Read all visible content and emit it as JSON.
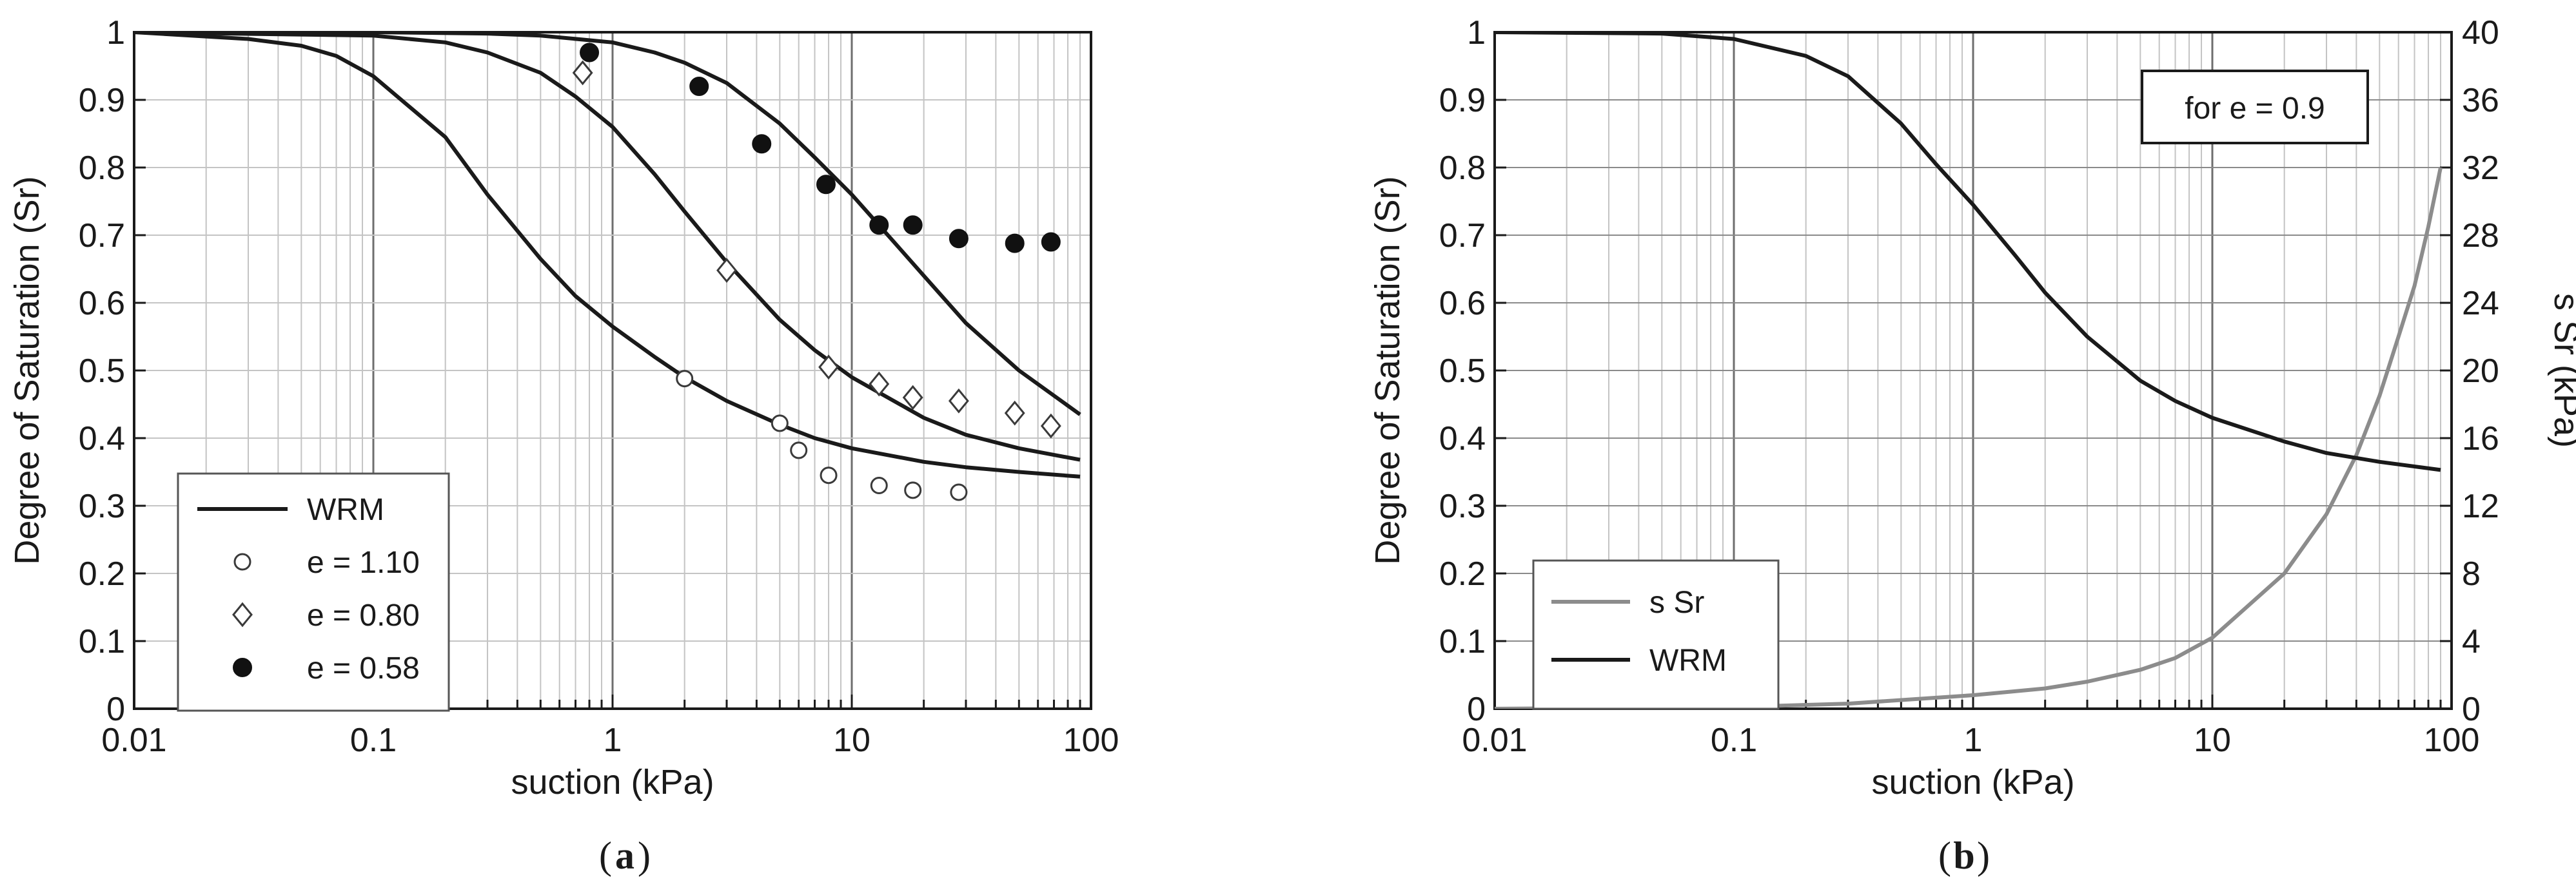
{
  "figure": {
    "panel_labels": [
      "(",
      "a",
      ")",
      "(",
      "b",
      ")"
    ]
  },
  "chart_data": [
    {
      "id": "a",
      "type": "scatter",
      "xlabel": "suction (kPa)",
      "ylabel": "Degree of Saturation (Sr)",
      "x_scale": "log",
      "xlim": [
        0.01,
        100
      ],
      "ylim": [
        0,
        1
      ],
      "x_ticks": [
        "0.01",
        "0.1",
        "1",
        "10",
        "100"
      ],
      "y_ticks": [
        "0",
        "0.1",
        "0.2",
        "0.3",
        "0.4",
        "0.5",
        "0.6",
        "0.7",
        "0.8",
        "0.9",
        "1"
      ],
      "grid": true,
      "legend": {
        "position": "bottom-left",
        "entries": [
          {
            "label": "WRM",
            "marker": "line"
          },
          {
            "label": "e = 1.10",
            "marker": "open-circle"
          },
          {
            "label": "e = 0.80",
            "marker": "open-diamond"
          },
          {
            "label": "e = 0.58",
            "marker": "filled-circle"
          }
        ]
      },
      "curves": [
        {
          "legend": "WRM",
          "x": [
            0.01,
            0.03,
            0.05,
            0.07,
            0.1,
            0.2,
            0.3,
            0.5,
            0.7,
            1,
            1.5,
            2,
            3,
            5,
            7,
            10,
            20,
            30,
            50,
            90
          ],
          "y": [
            1.0,
            0.99,
            0.98,
            0.965,
            0.935,
            0.845,
            0.76,
            0.665,
            0.61,
            0.565,
            0.52,
            0.49,
            0.455,
            0.42,
            0.4,
            0.385,
            0.365,
            0.357,
            0.35,
            0.343
          ]
        },
        {
          "legend": "WRM",
          "x": [
            0.01,
            0.1,
            0.2,
            0.3,
            0.5,
            0.7,
            1,
            1.5,
            2,
            3,
            5,
            7,
            10,
            20,
            30,
            50,
            90
          ],
          "y": [
            1.0,
            0.995,
            0.985,
            0.97,
            0.94,
            0.905,
            0.86,
            0.79,
            0.735,
            0.66,
            0.575,
            0.53,
            0.49,
            0.43,
            0.405,
            0.385,
            0.368
          ]
        },
        {
          "legend": "WRM",
          "x": [
            0.01,
            0.1,
            0.3,
            0.5,
            1,
            1.5,
            2,
            3,
            5,
            7,
            10,
            15,
            20,
            30,
            50,
            90
          ],
          "y": [
            1.0,
            1.0,
            0.998,
            0.995,
            0.985,
            0.97,
            0.955,
            0.925,
            0.865,
            0.815,
            0.76,
            0.69,
            0.64,
            0.57,
            0.5,
            0.435
          ]
        }
      ],
      "series": [
        {
          "legend": "e = 1.10",
          "marker": "open-circle",
          "x": [
            2,
            5,
            6,
            8,
            13,
            18,
            28
          ],
          "y": [
            0.488,
            0.422,
            0.382,
            0.345,
            0.33,
            0.323,
            0.32
          ]
        },
        {
          "legend": "e = 0.80",
          "marker": "open-diamond",
          "x": [
            0.75,
            3,
            8,
            13,
            18,
            28,
            48,
            68
          ],
          "y": [
            0.94,
            0.648,
            0.505,
            0.48,
            0.46,
            0.455,
            0.437,
            0.418
          ]
        },
        {
          "legend": "e = 0.58",
          "marker": "filled-circle",
          "x": [
            0.8,
            2.3,
            4.2,
            7.8,
            13,
            18,
            28,
            48,
            68
          ],
          "y": [
            0.97,
            0.92,
            0.835,
            0.775,
            0.715,
            0.715,
            0.695,
            0.688,
            0.69
          ]
        }
      ]
    },
    {
      "id": "b",
      "type": "line",
      "xlabel": "suction (kPa)",
      "ylabel": "Degree of Saturation (Sr)",
      "y2label": "s Sr (kPa)",
      "x_scale": "log",
      "xlim": [
        0.01,
        100
      ],
      "ylim": [
        0,
        1
      ],
      "y2lim": [
        0,
        40
      ],
      "x_ticks": [
        "0.01",
        "0.1",
        "1",
        "10",
        "100"
      ],
      "y_ticks": [
        "0",
        "0.1",
        "0.2",
        "0.3",
        "0.4",
        "0.5",
        "0.6",
        "0.7",
        "0.8",
        "0.9",
        "1"
      ],
      "y2_ticks": [
        "0",
        "4",
        "8",
        "12",
        "16",
        "20",
        "24",
        "28",
        "32",
        "36",
        "40"
      ],
      "grid": true,
      "annotation": "for e = 0.9",
      "legend": {
        "position": "bottom-left",
        "entries": [
          {
            "label": "s Sr",
            "color": "#8c8c8c"
          },
          {
            "label": "WRM",
            "color": "#1a1a1a"
          }
        ]
      },
      "series": [
        {
          "name": "s Sr",
          "axis": "y2",
          "color": "#8c8c8c",
          "x": [
            0.01,
            0.1,
            0.3,
            1,
            2,
            3,
            5,
            7,
            10,
            20,
            30,
            40,
            50,
            60,
            70,
            80,
            90
          ],
          "y": [
            0.0,
            0.1,
            0.3,
            0.8,
            1.2,
            1.6,
            2.3,
            3.0,
            4.2,
            8.0,
            11.5,
            15.0,
            18.5,
            22.0,
            25.0,
            28.5,
            32.0
          ]
        },
        {
          "name": "WRM",
          "axis": "y",
          "color": "#1a1a1a",
          "x": [
            0.01,
            0.05,
            0.1,
            0.2,
            0.3,
            0.5,
            0.7,
            1,
            1.5,
            2,
            3,
            5,
            7,
            10,
            20,
            30,
            50,
            90
          ],
          "y": [
            1.0,
            0.998,
            0.99,
            0.965,
            0.935,
            0.865,
            0.805,
            0.745,
            0.67,
            0.615,
            0.55,
            0.485,
            0.455,
            0.43,
            0.395,
            0.378,
            0.365,
            0.353
          ]
        }
      ]
    }
  ]
}
